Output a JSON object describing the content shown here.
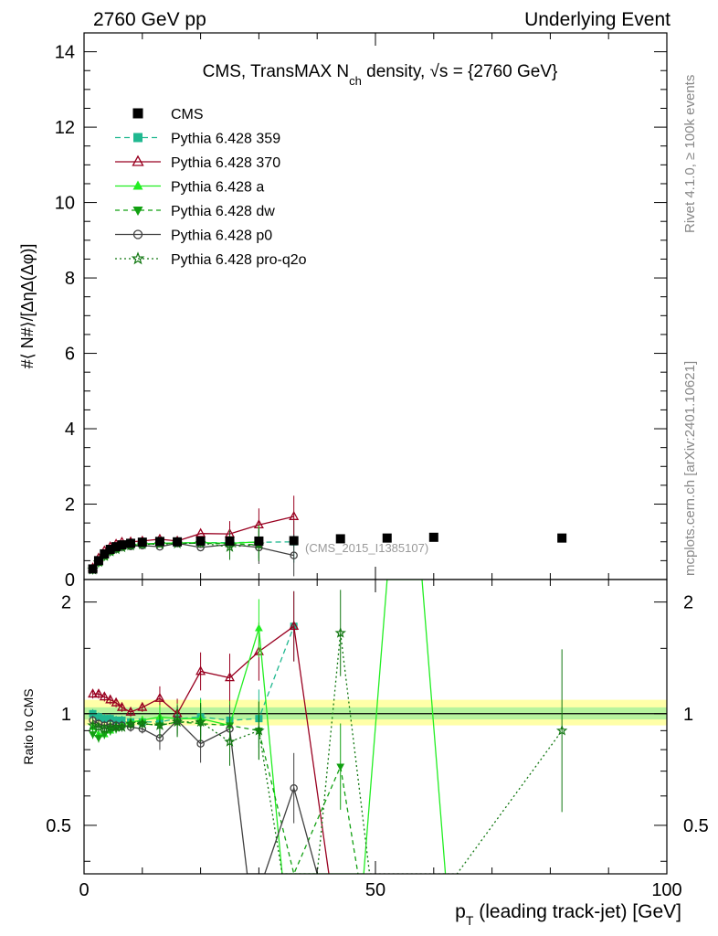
{
  "header": {
    "left": "2760 GeV pp",
    "right": "Underlying Event",
    "side_top": "Rivet 4.1.0, ≥ 100k events",
    "side_bottom": "mcplots.cern.ch [arXiv:2401.10621]"
  },
  "chart_data": [
    {
      "type": "line",
      "title_parts": {
        "pre": "CMS, TransMAX N",
        "sub": "ch",
        "post": " density, √s = {2760 GeV}"
      },
      "ylabel": "#⟨ N#⟩/[ΔηΔ(Δφ)]",
      "xlim": [
        0,
        100
      ],
      "ylim": [
        0,
        14.5
      ],
      "yticks": [
        "0",
        "2",
        "4",
        "6",
        "8",
        "10",
        "12",
        "14"
      ],
      "annotation": "(CMS_2015_I1385107)",
      "legend_position": "top-left",
      "data": {
        "name": "CMS",
        "x": [
          1.5,
          2.5,
          3.5,
          4.5,
          5.5,
          6.5,
          8,
          10,
          13,
          16,
          20,
          25,
          30,
          36,
          44,
          52,
          60,
          82
        ],
        "y": [
          0.28,
          0.5,
          0.68,
          0.8,
          0.87,
          0.92,
          0.96,
          0.99,
          1.01,
          1.0,
          1.02,
          1.02,
          1.02,
          1.03,
          1.08,
          1.1,
          1.12,
          1.1
        ]
      },
      "series": [
        {
          "name": "Pythia 6.428 359",
          "color": "#20b890",
          "dash": "6,4",
          "marker": "square",
          "x": [
            1.5,
            2.5,
            3.5,
            4.5,
            5.5,
            6.5,
            8,
            10,
            13,
            16,
            20,
            25,
            30,
            36
          ],
          "y": [
            0.28,
            0.49,
            0.66,
            0.78,
            0.84,
            0.88,
            0.91,
            0.94,
            0.96,
            0.97,
            0.98,
            0.98,
            0.99,
            1.0
          ]
        },
        {
          "name": "Pythia 6.428 370",
          "color": "#990020",
          "dash": "",
          "marker": "triangle-open",
          "x": [
            1.5,
            2.5,
            3.5,
            4.5,
            5.5,
            6.5,
            8,
            10,
            13,
            16,
            20,
            25,
            30,
            36
          ],
          "y": [
            0.31,
            0.57,
            0.76,
            0.87,
            0.94,
            0.99,
            1.0,
            1.02,
            1.07,
            1.02,
            1.22,
            1.21,
            1.45,
            1.67
          ]
        },
        {
          "name": "Pythia 6.428 a",
          "color": "#22ee22",
          "dash": "",
          "marker": "triangle",
          "x": [
            1.5,
            2.5,
            3.5,
            4.5,
            5.5,
            6.5,
            8,
            10,
            13,
            16,
            20,
            25,
            30
          ],
          "y": [
            0.25,
            0.44,
            0.6,
            0.73,
            0.8,
            0.86,
            0.9,
            0.94,
            0.96,
            0.97,
            0.98,
            0.96,
            1.0
          ]
        },
        {
          "name": "Pythia 6.428 dw",
          "color": "#11a011",
          "dash": "5,4",
          "marker": "triangle-down",
          "x": [
            1.5,
            2.5,
            3.5,
            4.5,
            5.5,
            6.5,
            8,
            10,
            13,
            16,
            20,
            25,
            30
          ],
          "y": [
            0.24,
            0.43,
            0.6,
            0.72,
            0.79,
            0.85,
            0.89,
            0.93,
            0.95,
            0.96,
            0.96,
            0.95,
            0.92
          ]
        },
        {
          "name": "Pythia 6.428 p0",
          "color": "#404040",
          "dash": "",
          "marker": "circle-open",
          "x": [
            1.5,
            2.5,
            3.5,
            4.5,
            5.5,
            6.5,
            8,
            10,
            13,
            16,
            20,
            25,
            30,
            36
          ],
          "y": [
            0.27,
            0.47,
            0.63,
            0.75,
            0.81,
            0.86,
            0.88,
            0.9,
            0.87,
            0.96,
            0.85,
            0.93,
            0.85,
            0.64
          ]
        },
        {
          "name": "Pythia 6.428 pro-q2o",
          "color": "#117711",
          "dash": "2,3",
          "marker": "star",
          "x": [
            1.5,
            2.5,
            3.5,
            4.5,
            5.5,
            6.5,
            8,
            10,
            13,
            16,
            20,
            25,
            30
          ],
          "y": [
            0.26,
            0.46,
            0.62,
            0.74,
            0.8,
            0.85,
            0.9,
            0.93,
            0.94,
            0.95,
            0.97,
            0.86,
            0.93
          ]
        }
      ]
    },
    {
      "type": "line",
      "ylabel": "Ratio to CMS",
      "xlabel_parts": {
        "pre": "p",
        "sub": "T",
        "post": " (leading track-jet) [GeV]"
      },
      "xlim": [
        0,
        100
      ],
      "ylim": [
        0.37,
        2.3
      ],
      "xticks": [
        "0",
        "50",
        "100"
      ],
      "yticks": [
        "0.5",
        "1",
        "2"
      ],
      "series": [
        {
          "name": "Pythia 6.428 359",
          "x": [
            1.5,
            2.5,
            3.5,
            4.5,
            5.5,
            6.5,
            8,
            10,
            13,
            16,
            20,
            25,
            30,
            36
          ],
          "y": [
            1.0,
            0.98,
            0.97,
            0.97,
            0.96,
            0.96,
            0.95,
            0.95,
            0.95,
            0.97,
            0.98,
            0.96,
            0.97,
            1.72
          ]
        },
        {
          "name": "Pythia 6.428 370",
          "x": [
            1.5,
            2.5,
            3.5,
            4.5,
            5.5,
            6.5,
            8,
            10,
            13,
            16,
            20,
            25,
            30,
            36,
            42
          ],
          "y": [
            1.13,
            1.13,
            1.11,
            1.09,
            1.07,
            1.04,
            1.01,
            1.04,
            1.1,
            1.0,
            1.3,
            1.25,
            1.47,
            1.72,
            0.37
          ]
        },
        {
          "name": "Pythia 6.428 a",
          "x": [
            1.5,
            2.5,
            3.5,
            4.5,
            5.5,
            6.5,
            8,
            10,
            13,
            16,
            20,
            25,
            30,
            34,
            41,
            48,
            52,
            58,
            62
          ],
          "y": [
            0.92,
            0.88,
            0.88,
            0.9,
            0.92,
            0.93,
            0.95,
            0.96,
            0.98,
            0.97,
            0.97,
            0.93,
            1.7,
            0.37,
            0.37,
            0.37,
            2.3,
            2.3,
            0.37
          ]
        },
        {
          "name": "Pythia 6.428 dw",
          "x": [
            1.5,
            2.5,
            3.5,
            4.5,
            5.5,
            6.5,
            8,
            10,
            13,
            16,
            20,
            25,
            30,
            36,
            44,
            47
          ],
          "y": [
            0.88,
            0.86,
            0.88,
            0.9,
            0.91,
            0.92,
            0.93,
            0.94,
            0.93,
            0.95,
            0.94,
            0.93,
            0.9,
            0.37,
            0.72,
            0.37
          ]
        },
        {
          "name": "Pythia 6.428 p0",
          "x": [
            1.5,
            2.5,
            3.5,
            4.5,
            5.5,
            6.5,
            8,
            10,
            13,
            16,
            20,
            25,
            28,
            31,
            36,
            40
          ],
          "y": [
            0.96,
            0.94,
            0.93,
            0.94,
            0.93,
            0.93,
            0.92,
            0.91,
            0.86,
            0.96,
            0.83,
            0.91,
            0.37,
            0.37,
            0.63,
            0.37
          ]
        },
        {
          "name": "Pythia 6.428 pro-q2o",
          "x": [
            1.5,
            2.5,
            3.5,
            4.5,
            5.5,
            6.5,
            8,
            10,
            13,
            16,
            20,
            25,
            30,
            34,
            40,
            44,
            49,
            64,
            82
          ],
          "y": [
            0.93,
            0.92,
            0.91,
            0.92,
            0.92,
            0.92,
            0.94,
            0.94,
            0.93,
            0.95,
            0.95,
            0.84,
            0.9,
            0.37,
            0.37,
            1.65,
            0.37,
            0.37,
            0.9
          ]
        }
      ]
    }
  ]
}
